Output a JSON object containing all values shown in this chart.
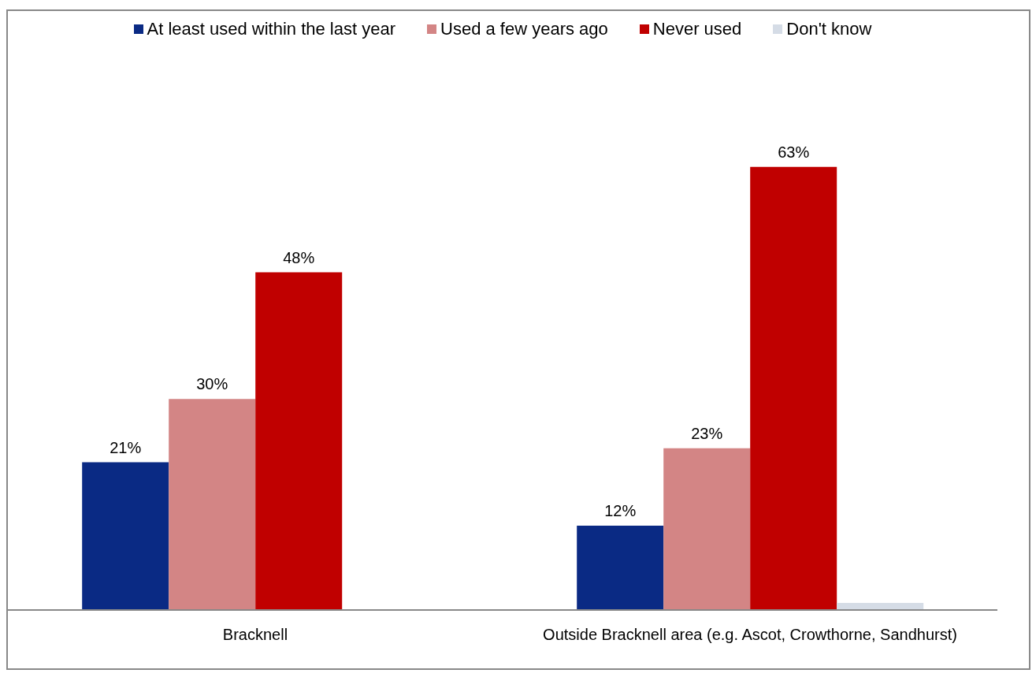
{
  "chart_data": {
    "type": "bar",
    "categories": [
      "Bracknell",
      "Outside Bracknell area (e.g. Ascot, Crowthorne, Sandhurst)"
    ],
    "series": [
      {
        "name": "At least used within the last year",
        "color": "#0a2a84",
        "values": [
          21,
          12
        ],
        "value_labels": [
          "21%",
          "12%"
        ]
      },
      {
        "name": "Used a few years ago",
        "color": "#d38585",
        "values": [
          30,
          23
        ],
        "value_labels": [
          "30%",
          "23%"
        ]
      },
      {
        "name": "Never used",
        "color": "#c00000",
        "values": [
          48,
          63
        ],
        "value_labels": [
          "48%",
          "63%"
        ]
      },
      {
        "name": "Don't know",
        "color": "#d5dce6",
        "values": [
          0,
          1
        ],
        "value_labels": [
          null,
          null
        ]
      }
    ],
    "grid": false,
    "legend": "top"
  }
}
